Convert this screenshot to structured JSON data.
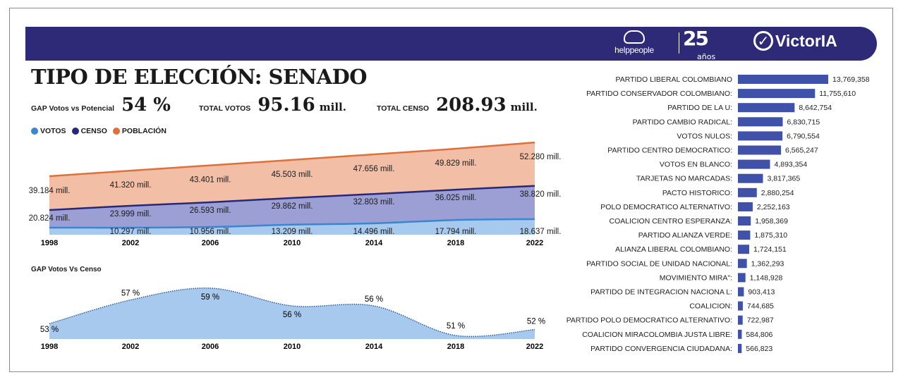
{
  "header": {
    "logos": [
      "helppeople",
      "25 años",
      "VictorIA"
    ],
    "helppeople": "helppeople",
    "anniversary_number": "25",
    "anniversary_word": "años",
    "victoria": "VictorIA"
  },
  "title": "TIPO DE ELECCIÓN: SENADO",
  "kpis": [
    {
      "label": "GAP Votos vs Potencial",
      "value": "54 %",
      "unit": ""
    },
    {
      "label": "TOTAL VOTOS",
      "value": "95.16",
      "unit": "mill."
    },
    {
      "label": "TOTAL CENSO",
      "value": "208.93",
      "unit": "mill."
    }
  ],
  "colors": {
    "votos": "#3a86d0",
    "censo": "#27287a",
    "poblacion": "#e0703a",
    "banner": "#2e2a78",
    "bar": "#3f51a8"
  },
  "chart_data": [
    {
      "type": "area",
      "legend": [
        "VOTOS",
        "CENSO",
        "POBLACIÓN"
      ],
      "legend_position": "top-left",
      "categories": [
        "1998",
        "2002",
        "2006",
        "2010",
        "2014",
        "2018",
        "2022"
      ],
      "series": [
        {
          "name": "POBLACIÓN",
          "values": [
            39.184,
            41.32,
            43.401,
            45.503,
            47.656,
            49.829,
            52.28
          ],
          "labels": [
            "39.184 mill.",
            "41.320 mill.",
            "43.401 mill.",
            "45.503 mill.",
            "47.656 mill.",
            "49.829 mill.",
            "52.280 mill."
          ]
        },
        {
          "name": "CENSO",
          "values": [
            20.824,
            23.999,
            26.593,
            29.862,
            32.803,
            36.025,
            38.82
          ],
          "labels": [
            "20.824 mill.",
            "23.999 mill.",
            "26.593 mill.",
            "29.862 mill.",
            "32.803 mill.",
            "36.025 mill.",
            "38.820 mill."
          ]
        },
        {
          "name": "VOTOS",
          "values": [
            null,
            10.297,
            10.956,
            13.209,
            14.496,
            17.794,
            18.637
          ],
          "labels": [
            "",
            "10.297 mill.",
            "10.956 mill.",
            "13.209 mill.",
            "14.496 mill.",
            "17.794 mill.",
            "18.637 mill."
          ]
        }
      ],
      "grid": false
    },
    {
      "type": "area",
      "title": "GAP Votos Vs Censo",
      "categories": [
        "1998",
        "2002",
        "2006",
        "2010",
        "2014",
        "2018",
        "2022"
      ],
      "values": [
        53,
        57,
        59,
        56,
        56,
        51,
        52
      ],
      "labels": [
        "53 %",
        "57 %",
        "59 %",
        "56 %",
        "56 %",
        "51 %",
        "52 %"
      ],
      "grid": false
    },
    {
      "type": "bar",
      "orientation": "horizontal",
      "categories": [
        "PARTIDO LIBERAL COLOMBIANO",
        "PARTIDO CONSERVADOR COLOMBIANO:",
        "PARTIDO DE LA U:",
        "PARTIDO CAMBIO RADICAL:",
        "VOTOS NULOS:",
        "PARTIDO CENTRO DEMOCRATICO:",
        "VOTOS EN BLANCO:",
        "TARJETAS NO MARCADAS:",
        "PACTO HISTORICO:",
        "POLO DEMOCRATICO ALTERNATIVO:",
        "COALICION CENTRO ESPERANZA:",
        "PARTIDO ALIANZA VERDE:",
        "ALIANZA LIBERAL COLOMBIANO:",
        "PARTIDO SOCIAL DE UNIDAD NACIONAL:",
        "MOVIMIENTO MIRA\":",
        "PARTIDO DE INTEGRACION NACIONA L:",
        "COALICION:",
        "PARTIDO POLO DEMOCRATICO ALTERNATIVO:",
        "COALICION MIRACOLOMBIA JUSTA LIBRE:",
        "PARTIDO CONVERGENCIA CIUDADANA:"
      ],
      "values": [
        13769358,
        11755610,
        8642754,
        6830715,
        6790554,
        6565247,
        4893354,
        3817365,
        2880254,
        2252163,
        1958369,
        1875310,
        1724151,
        1362293,
        1148928,
        903413,
        744685,
        722987,
        584806,
        566823
      ],
      "labels": [
        "13,769,358",
        "11,755,610",
        "8,642,754",
        "6,830,715",
        "6,790,554",
        "6,565,247",
        "4,893,354",
        "3,817,365",
        "2,880,254",
        "2,252,163",
        "1,958,369",
        "1,875,310",
        "1,724,151",
        "1,362,293",
        "1,148,928",
        "903,413",
        "744,685",
        "722,987",
        "584,806",
        "566,823"
      ]
    }
  ]
}
